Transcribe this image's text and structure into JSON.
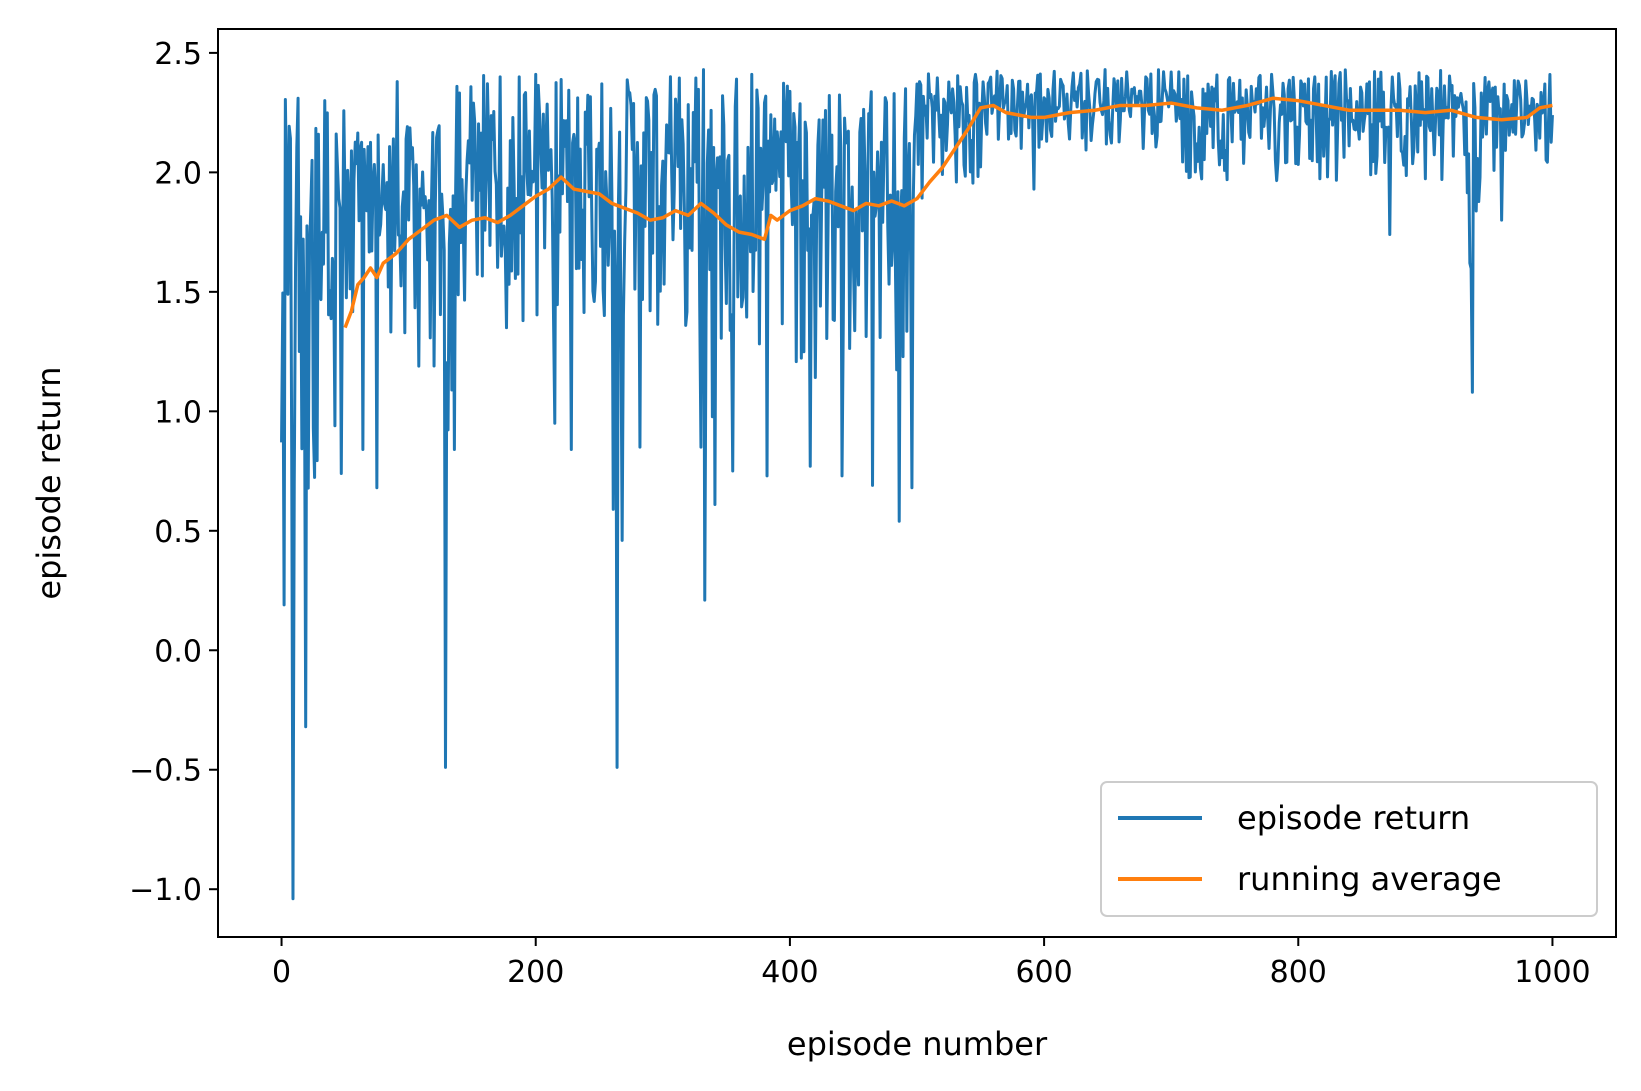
{
  "chart_data": {
    "type": "line",
    "xlabel": "episode number",
    "ylabel": "episode return",
    "xlim": [
      -50,
      1050
    ],
    "ylim": [
      -1.2,
      2.6
    ],
    "xticks": [
      0,
      200,
      400,
      600,
      800,
      1000
    ],
    "yticks": [
      -1.0,
      -0.5,
      0.0,
      0.5,
      1.0,
      1.5,
      2.0,
      2.5
    ],
    "xtick_labels": [
      "0",
      "200",
      "400",
      "600",
      "800",
      "1000"
    ],
    "ytick_labels": [
      "−1.0",
      "−0.5",
      "0.0",
      "0.5",
      "1.0",
      "1.5",
      "2.0",
      "2.5"
    ],
    "legend_position": "lower-right",
    "grid": false,
    "series": [
      {
        "name": "episode return",
        "color": "#1f77b4",
        "segments": [
          {
            "x": [
              0,
              5
            ],
            "min": -1.04,
            "max": 2.31
          },
          {
            "x": [
              5,
              50
            ],
            "min": -0.32,
            "max": 2.3
          },
          {
            "x": [
              50,
              125
            ],
            "min": 0.68,
            "max": 2.2
          },
          {
            "x": [
              125,
              135
            ],
            "min": -0.49,
            "max": 2.0
          },
          {
            "x": [
              135,
              260
            ],
            "min": 0.84,
            "max": 2.41
          },
          {
            "x": [
              260,
              270
            ],
            "min": -0.49,
            "max": 2.38
          },
          {
            "x": [
              270,
              325
            ],
            "min": 0.85,
            "max": 2.4
          },
          {
            "x": [
              325,
              345
            ],
            "min": 0.21,
            "max": 2.43
          },
          {
            "x": [
              345,
              400
            ],
            "min": 0.73,
            "max": 2.41
          },
          {
            "x": [
              400,
              500
            ],
            "min": 0.54,
            "max": 2.39
          },
          {
            "x": [
              500,
              560
            ],
            "min": 1.6,
            "max": 2.42
          },
          {
            "x": [
              560,
              700
            ],
            "min": 1.93,
            "max": 2.43
          },
          {
            "x": [
              700,
              930
            ],
            "min": 1.74,
            "max": 2.43
          },
          {
            "x": [
              930,
              945
            ],
            "min": 1.08,
            "max": 2.4
          },
          {
            "x": [
              945,
              1000
            ],
            "min": 1.8,
            "max": 2.41
          }
        ],
        "spikes": [
          {
            "x": 0,
            "y": 0.87
          },
          {
            "x": 2,
            "y": 0.19
          },
          {
            "x": 5,
            "y": 1.49
          },
          {
            "x": 9,
            "y": -1.04
          },
          {
            "x": 13,
            "y": 2.31
          },
          {
            "x": 19,
            "y": -0.32
          },
          {
            "x": 24,
            "y": 2.05
          },
          {
            "x": 34,
            "y": 2.3
          },
          {
            "x": 47,
            "y": 0.74
          },
          {
            "x": 64,
            "y": 0.84
          },
          {
            "x": 75,
            "y": 0.68
          },
          {
            "x": 91,
            "y": 2.38
          },
          {
            "x": 129,
            "y": -0.49
          },
          {
            "x": 136,
            "y": 0.84
          },
          {
            "x": 177,
            "y": 1.35
          },
          {
            "x": 200,
            "y": 2.41
          },
          {
            "x": 215,
            "y": 0.95
          },
          {
            "x": 228,
            "y": 0.84
          },
          {
            "x": 264,
            "y": -0.49
          },
          {
            "x": 282,
            "y": 0.85
          },
          {
            "x": 306,
            "y": 2.4
          },
          {
            "x": 330,
            "y": 0.85
          },
          {
            "x": 332,
            "y": 2.43
          },
          {
            "x": 333,
            "y": 0.21
          },
          {
            "x": 341,
            "y": 0.61
          },
          {
            "x": 355,
            "y": 0.75
          },
          {
            "x": 370,
            "y": 2.41
          },
          {
            "x": 382,
            "y": 0.73
          },
          {
            "x": 416,
            "y": 0.77
          },
          {
            "x": 441,
            "y": 0.73
          },
          {
            "x": 465,
            "y": 0.69
          },
          {
            "x": 486,
            "y": 0.54
          },
          {
            "x": 496,
            "y": 0.68
          },
          {
            "x": 502,
            "y": 2.38
          },
          {
            "x": 546,
            "y": 2.41
          },
          {
            "x": 592,
            "y": 1.93
          },
          {
            "x": 648,
            "y": 2.43
          },
          {
            "x": 700,
            "y": 2.42
          },
          {
            "x": 872,
            "y": 1.74
          },
          {
            "x": 935,
            "y": 1.62
          },
          {
            "x": 937,
            "y": 1.08
          },
          {
            "x": 960,
            "y": 1.8
          },
          {
            "x": 1000,
            "y": 2.24
          }
        ]
      },
      {
        "name": "running average",
        "color": "#ff7f0e",
        "x": [
          50,
          55,
          60,
          65,
          70,
          75,
          80,
          90,
          100,
          110,
          120,
          130,
          140,
          150,
          160,
          170,
          180,
          190,
          200,
          210,
          220,
          230,
          240,
          250,
          260,
          270,
          280,
          290,
          300,
          310,
          320,
          330,
          340,
          350,
          360,
          370,
          380,
          385,
          390,
          400,
          410,
          420,
          430,
          440,
          450,
          460,
          470,
          480,
          490,
          500,
          510,
          520,
          530,
          540,
          550,
          560,
          570,
          580,
          590,
          600,
          610,
          620,
          640,
          660,
          680,
          700,
          720,
          740,
          760,
          780,
          800,
          820,
          840,
          860,
          880,
          900,
          920,
          940,
          960,
          980,
          990,
          1000
        ],
        "values": [
          1.35,
          1.42,
          1.53,
          1.56,
          1.6,
          1.56,
          1.62,
          1.66,
          1.72,
          1.76,
          1.8,
          1.82,
          1.77,
          1.8,
          1.81,
          1.79,
          1.82,
          1.86,
          1.9,
          1.93,
          1.98,
          1.93,
          1.92,
          1.91,
          1.87,
          1.85,
          1.83,
          1.8,
          1.81,
          1.84,
          1.82,
          1.87,
          1.83,
          1.78,
          1.75,
          1.74,
          1.72,
          1.82,
          1.8,
          1.84,
          1.86,
          1.89,
          1.88,
          1.86,
          1.84,
          1.87,
          1.86,
          1.88,
          1.86,
          1.89,
          1.96,
          2.02,
          2.1,
          2.18,
          2.27,
          2.28,
          2.25,
          2.24,
          2.23,
          2.23,
          2.24,
          2.25,
          2.26,
          2.28,
          2.28,
          2.29,
          2.27,
          2.26,
          2.28,
          2.31,
          2.3,
          2.28,
          2.26,
          2.26,
          2.26,
          2.25,
          2.26,
          2.23,
          2.22,
          2.23,
          2.27,
          2.28
        ]
      }
    ]
  }
}
